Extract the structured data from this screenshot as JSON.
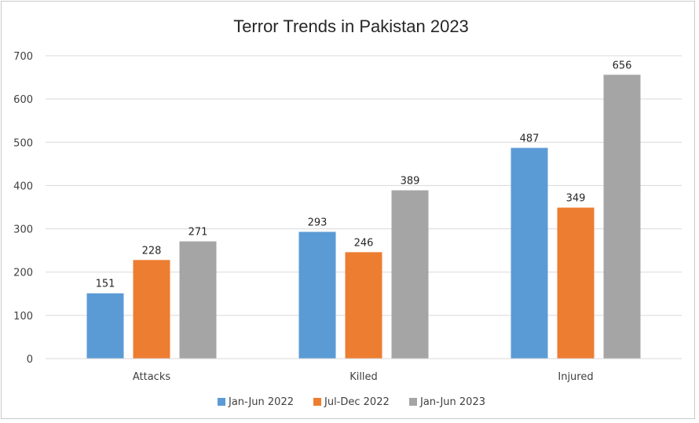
{
  "chart_data": {
    "type": "bar",
    "title": "Terror Trends in Pakistan 2023",
    "categories": [
      "Attacks",
      "Killed",
      "Injured"
    ],
    "series": [
      {
        "name": "Jan-Jun 2022",
        "color": "#5B9BD5",
        "values": [
          151,
          293,
          487
        ]
      },
      {
        "name": "Jul-Dec 2022",
        "color": "#ED7D31",
        "values": [
          228,
          246,
          349
        ]
      },
      {
        "name": "Jan-Jun 2023",
        "color": "#A5A5A5",
        "values": [
          271,
          389,
          656
        ]
      }
    ],
    "ylim": [
      0,
      700
    ],
    "yticks": [
      0,
      100,
      200,
      300,
      400,
      500,
      600,
      700
    ],
    "grid": true,
    "legend_position": "bottom",
    "data_labels": true,
    "gridline_color": "#D9D9D9"
  }
}
